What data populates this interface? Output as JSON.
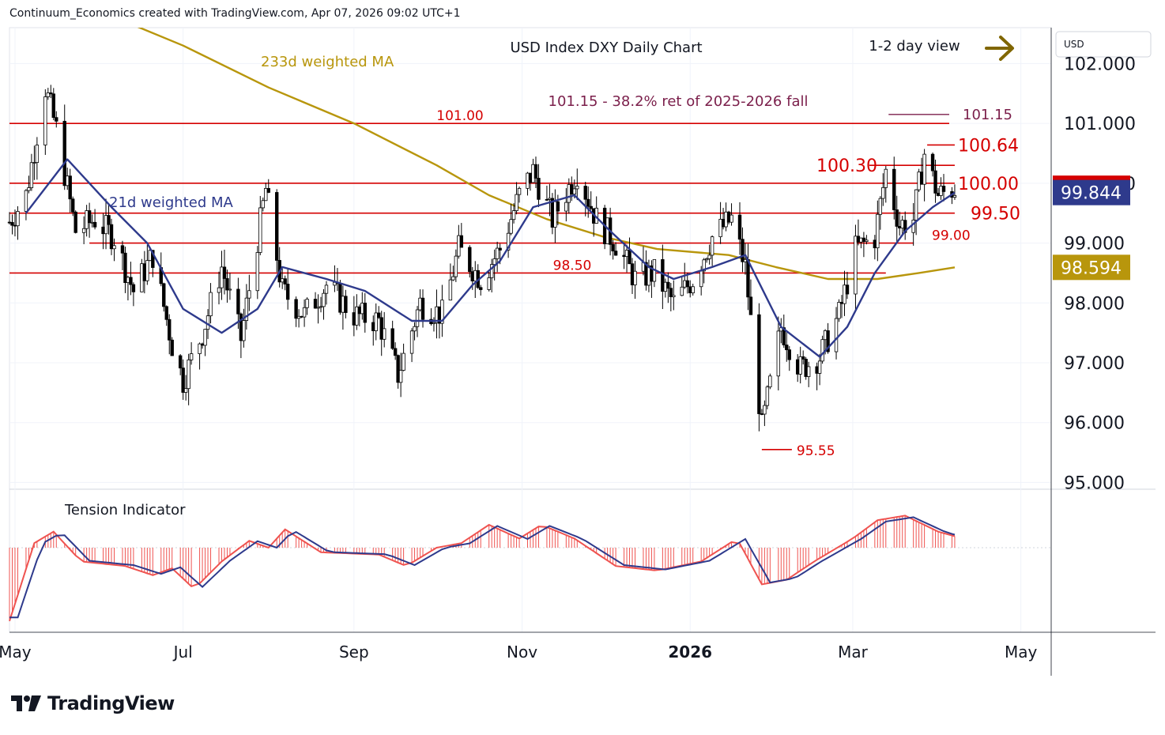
{
  "header": {
    "text": "Continuum_Economics created with TradingView.com, Apr 07, 2026 09:02 UTC+1"
  },
  "footer": {
    "brand": "TradingView"
  },
  "colors": {
    "up": "#26a69a",
    "down": "#ef5350",
    "candle": "#000000",
    "level_line": "#d50000",
    "ma21": "#2e3a8c",
    "ma233": "#b8960c",
    "fib": "#7b1f4b",
    "arrow": "#806600",
    "tension_pos": "#ef5350",
    "tension_neg": "#ef5350"
  },
  "chart_data": [
    {
      "type": "candlestick",
      "title": "USD Index DXY Daily Chart",
      "view_label": "1-2 day view",
      "view_icon": "right-arrow-icon",
      "currency": "USD",
      "ylim": [
        94.9,
        102.6
      ],
      "y_ticks": [
        "95.000",
        "96.000",
        "97.000",
        "98.000",
        "99.000",
        "100.000",
        "101.000",
        "102.000"
      ],
      "x_ticks": [
        {
          "label": "May",
          "date": "2025-05-01"
        },
        {
          "label": "Jul",
          "date": "2025-07-01"
        },
        {
          "label": "Sep",
          "date": "2025-09-01"
        },
        {
          "label": "Nov",
          "date": "2025-11-01"
        },
        {
          "label": "2026",
          "date": "2026-01-01",
          "bold": true
        },
        {
          "label": "Mar",
          "date": "2026-03-01"
        },
        {
          "label": "May",
          "date": "2026-05-01"
        }
      ],
      "x_range": [
        "2025-04-29",
        "2026-05-12"
      ],
      "price_labels": [
        {
          "value": 99.917,
          "text": "99.917",
          "bg": "#d50000"
        },
        {
          "value": 99.844,
          "text": "99.844",
          "bg": "#2e3a8c"
        },
        {
          "value": 98.594,
          "text": "98.594",
          "bg": "#b8960c"
        }
      ],
      "levels": [
        {
          "value": 101.0,
          "label": "101.00",
          "from": "2025-04-29",
          "to": "2026-04-05"
        },
        {
          "value": 100.0,
          "label": "100.00",
          "from": "2025-04-29",
          "to": "2026-04-07"
        },
        {
          "value": 99.5,
          "label": "99.50",
          "from": "2025-04-29",
          "to": "2026-04-07"
        },
        {
          "value": 99.0,
          "label": "99.00",
          "from": "2025-05-28",
          "to": "2026-03-23"
        },
        {
          "value": 98.5,
          "label": "98.50",
          "from": "2025-04-29",
          "to": "2026-03-13"
        },
        {
          "value": 100.3,
          "label": "100.30",
          "from": "2026-03-07",
          "to": "2026-04-07"
        },
        {
          "value": 100.64,
          "label": "100.64",
          "from": "2026-03-28",
          "to": "2026-04-07"
        }
      ],
      "fib": {
        "value": 101.15,
        "label": "101.15",
        "note": "101.15 - 38.2% ret of 2025-2026 fall",
        "from": "2026-03-14",
        "to": "2026-04-05"
      },
      "low_marker": {
        "value": 95.55,
        "label": "95.55",
        "date": "2026-01-27"
      },
      "ma_labels": {
        "ma233": "233d weighted MA",
        "ma21": "21d weighted MA"
      },
      "closes": [
        {
          "date": "2025-04-29",
          "close": 99.35
        },
        {
          "date": "2025-05-05",
          "close": 99.8
        },
        {
          "date": "2025-05-12",
          "close": 101.6
        },
        {
          "date": "2025-05-16",
          "close": 100.9
        },
        {
          "date": "2025-05-23",
          "close": 99.2
        },
        {
          "date": "2025-05-30",
          "close": 99.4
        },
        {
          "date": "2025-06-06",
          "close": 99.1
        },
        {
          "date": "2025-06-13",
          "close": 98.2
        },
        {
          "date": "2025-06-20",
          "close": 98.8
        },
        {
          "date": "2025-06-27",
          "close": 97.3
        },
        {
          "date": "2025-07-01",
          "close": 96.7
        },
        {
          "date": "2025-07-08",
          "close": 97.5
        },
        {
          "date": "2025-07-15",
          "close": 98.6
        },
        {
          "date": "2025-07-22",
          "close": 97.4
        },
        {
          "date": "2025-07-31",
          "close": 99.9
        },
        {
          "date": "2025-08-06",
          "close": 98.2
        },
        {
          "date": "2025-08-14",
          "close": 97.8
        },
        {
          "date": "2025-08-22",
          "close": 98.3
        },
        {
          "date": "2025-09-01",
          "close": 97.8
        },
        {
          "date": "2025-09-10",
          "close": 97.7
        },
        {
          "date": "2025-09-17",
          "close": 96.8
        },
        {
          "date": "2025-09-25",
          "close": 98.0
        },
        {
          "date": "2025-10-03",
          "close": 97.8
        },
        {
          "date": "2025-10-09",
          "close": 98.9
        },
        {
          "date": "2025-10-17",
          "close": 98.4
        },
        {
          "date": "2025-10-24",
          "close": 98.9
        },
        {
          "date": "2025-10-31",
          "close": 99.8
        },
        {
          "date": "2025-11-05",
          "close": 100.2
        },
        {
          "date": "2025-11-12",
          "close": 99.4
        },
        {
          "date": "2025-11-21",
          "close": 100.2
        },
        {
          "date": "2025-11-28",
          "close": 99.4
        },
        {
          "date": "2025-12-05",
          "close": 99.0
        },
        {
          "date": "2025-12-12",
          "close": 98.4
        },
        {
          "date": "2025-12-19",
          "close": 98.5
        },
        {
          "date": "2025-12-26",
          "close": 98.0
        },
        {
          "date": "2026-01-02",
          "close": 98.4
        },
        {
          "date": "2026-01-09",
          "close": 99.1
        },
        {
          "date": "2026-01-16",
          "close": 99.4
        },
        {
          "date": "2026-01-21",
          "close": 98.6
        },
        {
          "date": "2026-01-27",
          "close": 95.9
        },
        {
          "date": "2026-02-03",
          "close": 97.6
        },
        {
          "date": "2026-02-10",
          "close": 96.9
        },
        {
          "date": "2026-02-17",
          "close": 97.1
        },
        {
          "date": "2026-02-24",
          "close": 97.8
        },
        {
          "date": "2026-03-02",
          "close": 98.9
        },
        {
          "date": "2026-03-09",
          "close": 99.1
        },
        {
          "date": "2026-03-13",
          "close": 100.2
        },
        {
          "date": "2026-03-18",
          "close": 99.3
        },
        {
          "date": "2026-03-23",
          "close": 99.4
        },
        {
          "date": "2026-03-27",
          "close": 100.5
        },
        {
          "date": "2026-04-01",
          "close": 99.8
        },
        {
          "date": "2026-04-07",
          "close": 99.917
        }
      ],
      "ma21": [
        {
          "date": "2025-05-05",
          "value": 99.5
        },
        {
          "date": "2025-05-20",
          "value": 100.4
        },
        {
          "date": "2025-06-05",
          "value": 99.6
        },
        {
          "date": "2025-06-18",
          "value": 99.0
        },
        {
          "date": "2025-07-01",
          "value": 97.9
        },
        {
          "date": "2025-07-15",
          "value": 97.5
        },
        {
          "date": "2025-07-28",
          "value": 97.9
        },
        {
          "date": "2025-08-06",
          "value": 98.6
        },
        {
          "date": "2025-08-22",
          "value": 98.4
        },
        {
          "date": "2025-09-05",
          "value": 98.2
        },
        {
          "date": "2025-09-22",
          "value": 97.7
        },
        {
          "date": "2025-10-03",
          "value": 97.7
        },
        {
          "date": "2025-10-14",
          "value": 98.3
        },
        {
          "date": "2025-10-24",
          "value": 98.7
        },
        {
          "date": "2025-11-05",
          "value": 99.6
        },
        {
          "date": "2025-11-20",
          "value": 99.8
        },
        {
          "date": "2025-12-03",
          "value": 99.2
        },
        {
          "date": "2025-12-17",
          "value": 98.6
        },
        {
          "date": "2025-12-26",
          "value": 98.4
        },
        {
          "date": "2026-01-09",
          "value": 98.6
        },
        {
          "date": "2026-01-21",
          "value": 98.8
        },
        {
          "date": "2026-02-03",
          "value": 97.6
        },
        {
          "date": "2026-02-17",
          "value": 97.1
        },
        {
          "date": "2026-02-27",
          "value": 97.6
        },
        {
          "date": "2026-03-09",
          "value": 98.5
        },
        {
          "date": "2026-03-20",
          "value": 99.2
        },
        {
          "date": "2026-03-30",
          "value": 99.6
        },
        {
          "date": "2026-04-07",
          "value": 99.844
        }
      ],
      "ma233": [
        {
          "date": "2025-06-10",
          "value": 102.7
        },
        {
          "date": "2025-07-01",
          "value": 102.3
        },
        {
          "date": "2025-08-01",
          "value": 101.6
        },
        {
          "date": "2025-09-01",
          "value": 101.0
        },
        {
          "date": "2025-10-01",
          "value": 100.3
        },
        {
          "date": "2025-10-20",
          "value": 99.8
        },
        {
          "date": "2025-11-10",
          "value": 99.4
        },
        {
          "date": "2025-12-01",
          "value": 99.1
        },
        {
          "date": "2025-12-20",
          "value": 98.9
        },
        {
          "date": "2026-01-15",
          "value": 98.8
        },
        {
          "date": "2026-02-01",
          "value": 98.6
        },
        {
          "date": "2026-02-20",
          "value": 98.4
        },
        {
          "date": "2026-03-10",
          "value": 98.4
        },
        {
          "date": "2026-03-25",
          "value": 98.5
        },
        {
          "date": "2026-04-07",
          "value": 98.594
        }
      ]
    },
    {
      "type": "area",
      "title": "Tension Indicator",
      "series": [
        {
          "date": "2025-04-29",
          "value": -1.6
        },
        {
          "date": "2025-05-08",
          "value": 0.1
        },
        {
          "date": "2025-05-15",
          "value": 0.35
        },
        {
          "date": "2025-05-25",
          "value": -0.3
        },
        {
          "date": "2025-06-10",
          "value": -0.4
        },
        {
          "date": "2025-06-20",
          "value": -0.6
        },
        {
          "date": "2025-06-27",
          "value": -0.45
        },
        {
          "date": "2025-07-05",
          "value": -0.9
        },
        {
          "date": "2025-07-15",
          "value": -0.3
        },
        {
          "date": "2025-07-25",
          "value": 0.15
        },
        {
          "date": "2025-08-01",
          "value": 0.0
        },
        {
          "date": "2025-08-07",
          "value": 0.4
        },
        {
          "date": "2025-08-20",
          "value": -0.1
        },
        {
          "date": "2025-09-10",
          "value": -0.15
        },
        {
          "date": "2025-09-20",
          "value": -0.4
        },
        {
          "date": "2025-10-01",
          "value": 0.0
        },
        {
          "date": "2025-10-10",
          "value": 0.1
        },
        {
          "date": "2025-10-20",
          "value": 0.5
        },
        {
          "date": "2025-10-31",
          "value": 0.2
        },
        {
          "date": "2025-11-08",
          "value": 0.5
        },
        {
          "date": "2025-11-20",
          "value": 0.2
        },
        {
          "date": "2025-12-05",
          "value": -0.4
        },
        {
          "date": "2025-12-20",
          "value": -0.5
        },
        {
          "date": "2026-01-05",
          "value": -0.3
        },
        {
          "date": "2026-01-18",
          "value": 0.2
        },
        {
          "date": "2026-01-27",
          "value": -0.8
        },
        {
          "date": "2026-02-05",
          "value": -0.7
        },
        {
          "date": "2026-02-15",
          "value": -0.3
        },
        {
          "date": "2026-03-01",
          "value": 0.2
        },
        {
          "date": "2026-03-10",
          "value": 0.6
        },
        {
          "date": "2026-03-20",
          "value": 0.7
        },
        {
          "date": "2026-04-01",
          "value": 0.35
        },
        {
          "date": "2026-04-07",
          "value": 0.25
        }
      ]
    }
  ]
}
